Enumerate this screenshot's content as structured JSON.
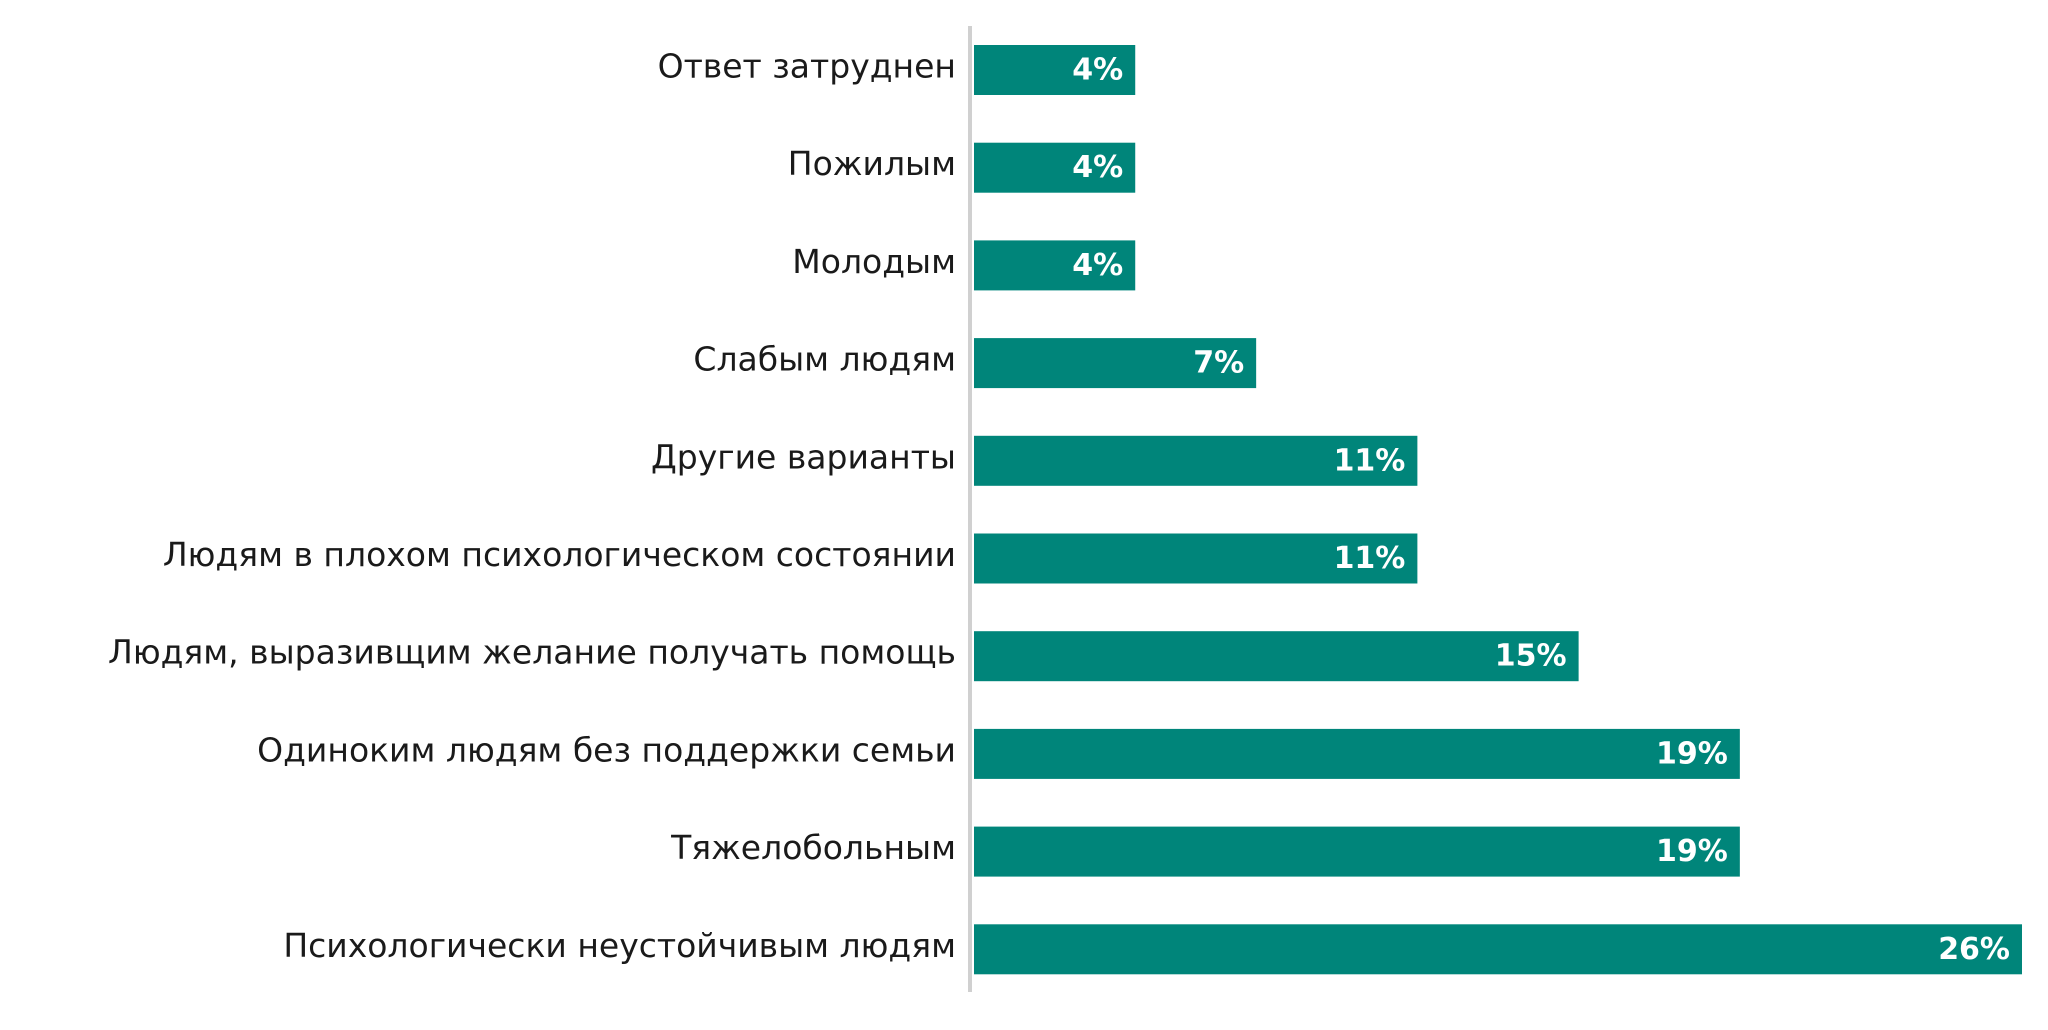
{
  "chart_data": {
    "type": "bar",
    "orientation": "horizontal",
    "categories": [
      "Ответ затруднен",
      "Пожилым",
      "Молодым",
      "Слабым людям",
      "Другие варианты",
      "Людям в плохом психологическом состоянии",
      "Людям, выразивщим желание получать помощь",
      "Одиноким людям без поддержки семьи",
      "Тяжелобольным",
      "Психологически неустойчивым людям"
    ],
    "values": [
      4,
      4,
      4,
      7,
      11,
      11,
      15,
      19,
      19,
      26
    ],
    "value_labels": [
      "4%",
      "4%",
      "4%",
      "7%",
      "11%",
      "11%",
      "15%",
      "19%",
      "19%",
      "26%"
    ],
    "unit": "%",
    "xlim": [
      0,
      26
    ],
    "grid": false,
    "legend": "none",
    "title": "",
    "xlabel": "",
    "ylabel": "",
    "colors": {
      "bar": "#00857a",
      "axis": "#d0d0d0",
      "category_text": "#1a1a1a",
      "value_text": "#ffffff"
    }
  }
}
